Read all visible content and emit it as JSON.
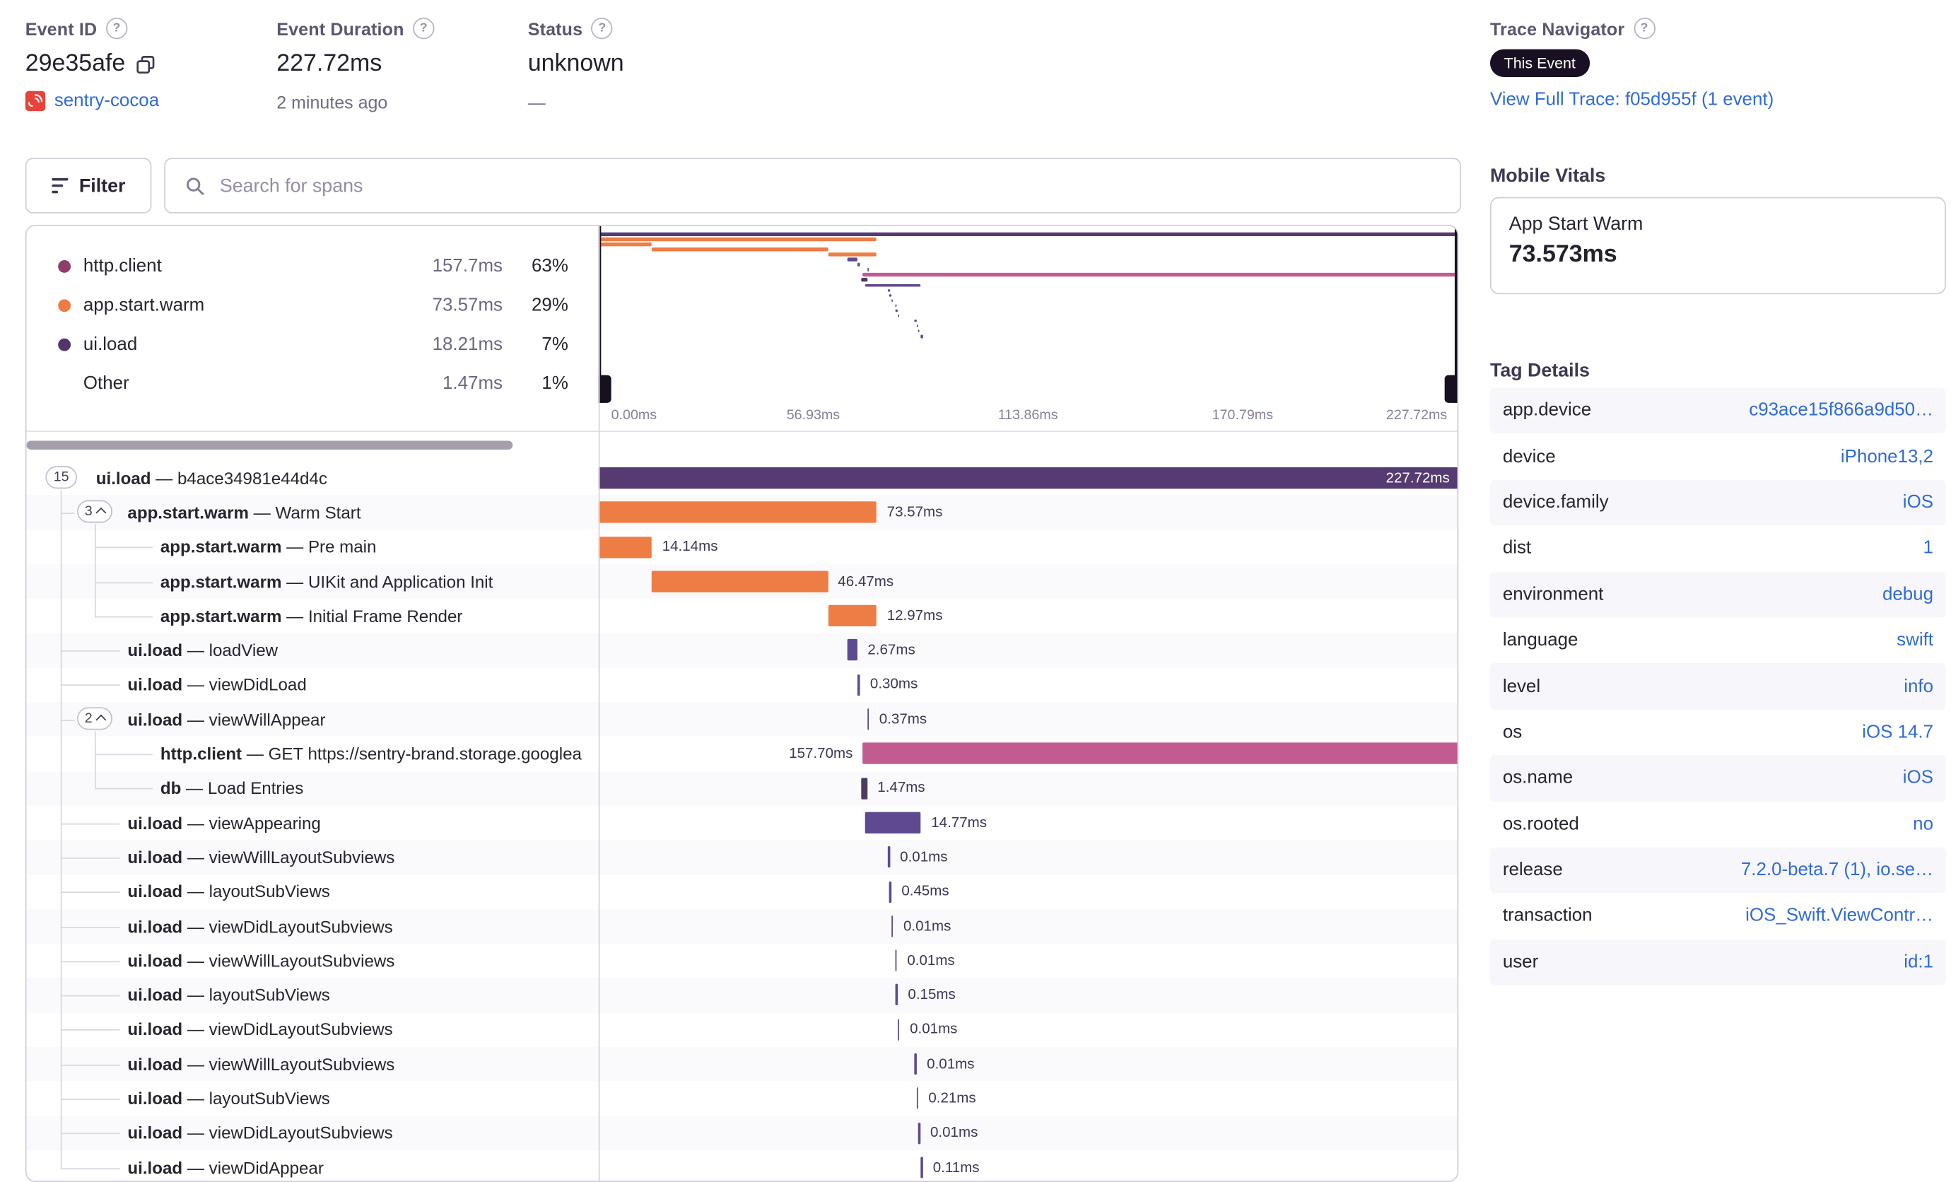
{
  "header": {
    "event_id": {
      "label": "Event ID",
      "value": "29e35afe",
      "project": "sentry-cocoa"
    },
    "duration": {
      "label": "Event Duration",
      "value": "227.72ms",
      "ago": "2 minutes ago"
    },
    "status": {
      "label": "Status",
      "value": "unknown",
      "sub": "—"
    },
    "trace_navigator": {
      "label": "Trace Navigator",
      "badge": "This Event",
      "link": "View Full Trace: f05d955f (1 event)"
    }
  },
  "toolbar": {
    "filter_label": "Filter",
    "search_placeholder": "Search for spans"
  },
  "legend": {
    "items": [
      {
        "name": "http.client",
        "value": "157.7ms",
        "pct": "63%",
        "color": "#8e3e68"
      },
      {
        "name": "app.start.warm",
        "value": "73.57ms",
        "pct": "29%",
        "color": "#ee7d45"
      },
      {
        "name": "ui.load",
        "value": "18.21ms",
        "pct": "7%",
        "color": "#50366b"
      },
      {
        "name": "Other",
        "value": "1.47ms",
        "pct": "1%",
        "color": ""
      }
    ]
  },
  "axis": {
    "ticks": [
      "0.00ms",
      "56.93ms",
      "113.86ms",
      "170.79ms",
      "227.72ms"
    ]
  },
  "vitals": {
    "title": "Mobile Vitals",
    "metric_name": "App Start Warm",
    "metric_value": "73.573ms"
  },
  "tags": {
    "title": "Tag Details",
    "rows": [
      {
        "key": "app.device",
        "value": "c93ace15f866a9d50…"
      },
      {
        "key": "device",
        "value": "iPhone13,2"
      },
      {
        "key": "device.family",
        "value": "iOS"
      },
      {
        "key": "dist",
        "value": "1"
      },
      {
        "key": "environment",
        "value": "debug"
      },
      {
        "key": "language",
        "value": "swift"
      },
      {
        "key": "level",
        "value": "info"
      },
      {
        "key": "os",
        "value": "iOS 14.7"
      },
      {
        "key": "os.name",
        "value": "iOS"
      },
      {
        "key": "os.rooted",
        "value": "no"
      },
      {
        "key": "release",
        "value": "7.2.0-beta.7 (1), io.se…"
      },
      {
        "key": "transaction",
        "value": "iOS_Swift.ViewContr…"
      },
      {
        "key": "user",
        "value": "id:1"
      }
    ]
  },
  "waterfall": {
    "total_ms": 227.72,
    "spans": [
      {
        "op": "ui.load",
        "desc": "b4ace34981e44d4c",
        "badge": "15",
        "chevron": false,
        "depth": 0,
        "start": 0,
        "dur": 227.72,
        "label": "227.72ms",
        "color": "#553b72",
        "label_pos": "inside"
      },
      {
        "op": "app.start.warm",
        "desc": "Warm Start",
        "badge": "3",
        "chevron": true,
        "depth": 1,
        "start": 0,
        "dur": 73.57,
        "label": "73.57ms",
        "color": "#ee7d45",
        "label_pos": "right"
      },
      {
        "op": "app.start.warm",
        "desc": "Pre main",
        "depth": 2,
        "start": 0,
        "dur": 14.14,
        "label": "14.14ms",
        "color": "#ee7d45",
        "label_pos": "right"
      },
      {
        "op": "app.start.warm",
        "desc": "UIKit and Application Init",
        "depth": 2,
        "start": 14.14,
        "dur": 46.47,
        "label": "46.47ms",
        "color": "#ee7d45",
        "label_pos": "right"
      },
      {
        "op": "app.start.warm",
        "desc": "Initial Frame Render",
        "depth": 2,
        "start": 60.61,
        "dur": 12.97,
        "label": "12.97ms",
        "color": "#ee7d45",
        "label_pos": "right"
      },
      {
        "op": "ui.load",
        "desc": "loadView",
        "depth": 1,
        "start": 65.8,
        "dur": 2.67,
        "label": "2.67ms",
        "color": "#5d4a90",
        "label_pos": "right"
      },
      {
        "op": "ui.load",
        "desc": "viewDidLoad",
        "depth": 1,
        "start": 68.6,
        "dur": 0.3,
        "label": "0.30ms",
        "color": "#5d4a90",
        "label_pos": "right"
      },
      {
        "op": "ui.load",
        "desc": "viewWillAppear",
        "badge": "2",
        "chevron": true,
        "depth": 1,
        "start": 71.0,
        "dur": 0.37,
        "label": "0.37ms",
        "color": "#5d4a90",
        "label_pos": "right"
      },
      {
        "op": "http.client",
        "desc": "GET https://sentry-brand.storage.googlea",
        "depth": 2,
        "start": 69.9,
        "dur": 157.7,
        "label": "157.70ms",
        "color": "#c25b90",
        "label_pos": "left"
      },
      {
        "op": "db",
        "desc": "Load Entries",
        "depth": 2,
        "start": 69.6,
        "dur": 1.47,
        "label": "1.47ms",
        "color": "#4a3b61",
        "label_pos": "right"
      },
      {
        "op": "ui.load",
        "desc": "viewAppearing",
        "depth": 1,
        "start": 70.5,
        "dur": 14.77,
        "label": "14.77ms",
        "color": "#5d4a90",
        "label_pos": "right"
      },
      {
        "op": "ui.load",
        "desc": "viewWillLayoutSubviews",
        "depth": 1,
        "start": 76.5,
        "dur": 0.01,
        "label": "0.01ms",
        "color": "#5d4a90",
        "label_pos": "right"
      },
      {
        "op": "ui.load",
        "desc": "layoutSubViews",
        "depth": 1,
        "start": 76.9,
        "dur": 0.45,
        "label": "0.45ms",
        "color": "#5d4a90",
        "label_pos": "right"
      },
      {
        "op": "ui.load",
        "desc": "viewDidLayoutSubviews",
        "depth": 1,
        "start": 77.4,
        "dur": 0.01,
        "label": "0.01ms",
        "color": "#5d4a90",
        "label_pos": "right"
      },
      {
        "op": "ui.load",
        "desc": "viewWillLayoutSubviews",
        "depth": 1,
        "start": 78.4,
        "dur": 0.01,
        "label": "0.01ms",
        "color": "#5d4a90",
        "label_pos": "right"
      },
      {
        "op": "ui.load",
        "desc": "layoutSubViews",
        "depth": 1,
        "start": 78.6,
        "dur": 0.15,
        "label": "0.15ms",
        "color": "#5d4a90",
        "label_pos": "right"
      },
      {
        "op": "ui.load",
        "desc": "viewDidLayoutSubviews",
        "depth": 1,
        "start": 79.1,
        "dur": 0.01,
        "label": "0.01ms",
        "color": "#5d4a90",
        "label_pos": "right"
      },
      {
        "op": "ui.load",
        "desc": "viewWillLayoutSubviews",
        "depth": 1,
        "start": 83.6,
        "dur": 0.01,
        "label": "0.01ms",
        "color": "#5d4a90",
        "label_pos": "right"
      },
      {
        "op": "ui.load",
        "desc": "layoutSubViews",
        "depth": 1,
        "start": 84.0,
        "dur": 0.21,
        "label": "0.21ms",
        "color": "#5d4a90",
        "label_pos": "right"
      },
      {
        "op": "ui.load",
        "desc": "viewDidLayoutSubviews",
        "depth": 1,
        "start": 84.5,
        "dur": 0.01,
        "label": "0.01ms",
        "color": "#5d4a90",
        "label_pos": "right"
      },
      {
        "op": "ui.load",
        "desc": "viewDidAppear",
        "depth": 1,
        "start": 85.2,
        "dur": 0.11,
        "label": "0.11ms",
        "color": "#5d4a90",
        "label_pos": "right"
      }
    ]
  }
}
